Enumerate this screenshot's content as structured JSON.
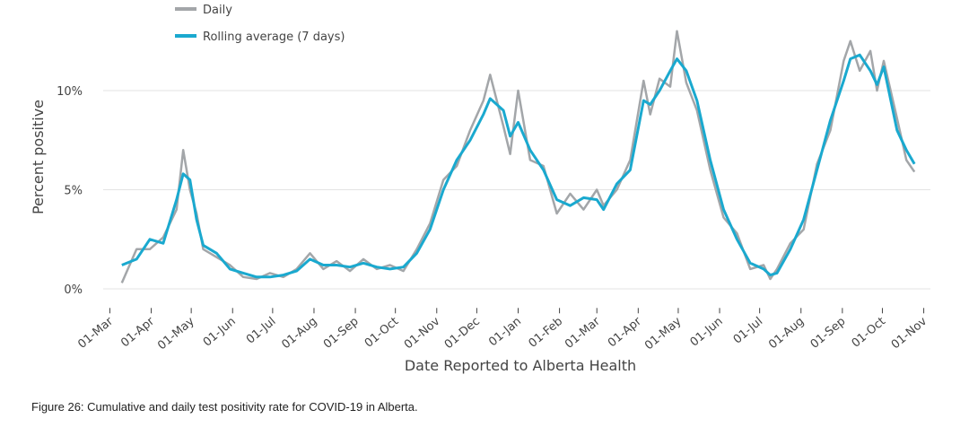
{
  "chart_data": {
    "type": "line",
    "ylabel": "Percent positive",
    "xlabel": "Date Reported to Alberta Health",
    "caption": "Figure 26: Cumulative and daily test positivity rate for COVID-19 in Alberta.",
    "x": [
      9,
      20,
      30,
      40,
      50,
      55,
      60,
      65,
      70,
      80,
      90,
      100,
      110,
      120,
      130,
      140,
      150,
      160,
      170,
      180,
      190,
      200,
      210,
      220,
      230,
      240,
      250,
      260,
      270,
      280,
      285,
      295,
      300,
      306,
      315,
      325,
      335,
      345,
      355,
      365,
      370,
      380,
      390,
      400,
      405,
      412,
      420,
      425,
      432,
      440,
      450,
      460,
      470,
      480,
      490,
      495,
      500,
      510,
      520,
      530,
      540,
      550,
      555,
      562,
      570,
      575,
      580,
      590,
      597,
      603
    ],
    "series": [
      {
        "name": "Daily",
        "color": "#a3a6a9",
        "values": [
          0.3,
          2.0,
          2.0,
          2.6,
          4.0,
          7.0,
          5.0,
          3.8,
          2.0,
          1.6,
          1.2,
          0.6,
          0.5,
          0.8,
          0.6,
          1.0,
          1.8,
          1.0,
          1.4,
          0.9,
          1.5,
          1.0,
          1.2,
          0.9,
          2.0,
          3.3,
          5.5,
          6.2,
          8.0,
          9.5,
          10.8,
          8.2,
          6.8,
          10.0,
          6.5,
          6.2,
          3.8,
          4.8,
          4.0,
          5.0,
          4.2,
          5.0,
          6.5,
          10.5,
          8.8,
          10.6,
          10.2,
          13.0,
          10.4,
          9.0,
          6.0,
          3.6,
          2.8,
          1.0,
          1.2,
          0.5,
          1.0,
          2.3,
          3.0,
          6.3,
          8.0,
          11.5,
          12.5,
          11.0,
          12.0,
          10.0,
          11.5,
          8.6,
          6.5,
          5.9
        ]
      },
      {
        "name": "Rolling average (7 days)",
        "color": "#1aa9cf",
        "values": [
          1.2,
          1.5,
          2.5,
          2.3,
          4.5,
          5.8,
          5.5,
          3.5,
          2.2,
          1.8,
          1.0,
          0.8,
          0.6,
          0.6,
          0.7,
          0.9,
          1.5,
          1.2,
          1.2,
          1.1,
          1.3,
          1.1,
          1.0,
          1.1,
          1.8,
          3.0,
          5.0,
          6.5,
          7.5,
          8.8,
          9.6,
          9.0,
          7.7,
          8.4,
          7.0,
          6.0,
          4.5,
          4.2,
          4.6,
          4.5,
          4.0,
          5.3,
          6.0,
          9.5,
          9.3,
          10.0,
          11.0,
          11.6,
          11.0,
          9.5,
          6.5,
          4.0,
          2.5,
          1.3,
          1.0,
          0.7,
          0.8,
          2.0,
          3.5,
          6.0,
          8.5,
          10.5,
          11.6,
          11.8,
          11.0,
          10.3,
          11.2,
          8.0,
          7.0,
          6.3
        ]
      }
    ],
    "xlim": [
      -5,
      615
    ],
    "ylim": [
      -0.6,
      14
    ],
    "xticks": [
      {
        "value": 0,
        "label": "01-Mar"
      },
      {
        "value": 31,
        "label": "01-Apr"
      },
      {
        "value": 61,
        "label": "01-May"
      },
      {
        "value": 92,
        "label": "01-Jun"
      },
      {
        "value": 122,
        "label": "01-Jul"
      },
      {
        "value": 153,
        "label": "01-Aug"
      },
      {
        "value": 184,
        "label": "01-Sep"
      },
      {
        "value": 214,
        "label": "01-Oct"
      },
      {
        "value": 245,
        "label": "01-Nov"
      },
      {
        "value": 275,
        "label": "01-Dec"
      },
      {
        "value": 306,
        "label": "01-Jan"
      },
      {
        "value": 337,
        "label": "01-Feb"
      },
      {
        "value": 365,
        "label": "01-Mar"
      },
      {
        "value": 396,
        "label": "01-Apr"
      },
      {
        "value": 426,
        "label": "01-May"
      },
      {
        "value": 457,
        "label": "01-Jun"
      },
      {
        "value": 487,
        "label": "01-Jul"
      },
      {
        "value": 518,
        "label": "01-Aug"
      },
      {
        "value": 549,
        "label": "01-Sep"
      },
      {
        "value": 579,
        "label": "01-Oct"
      },
      {
        "value": 610,
        "label": "01-Nov"
      }
    ],
    "yticks": [
      {
        "value": 0,
        "label": "0%"
      },
      {
        "value": 5,
        "label": "5%"
      },
      {
        "value": 10,
        "label": "10%"
      }
    ],
    "grid": true
  }
}
